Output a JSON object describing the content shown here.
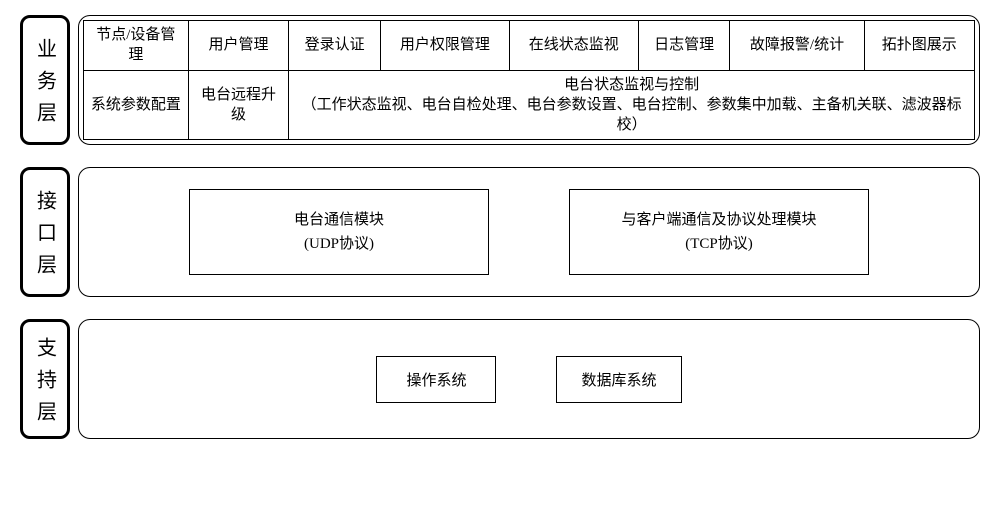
{
  "diagram": {
    "type": "layered-architecture",
    "colors": {
      "background": "#ffffff",
      "border": "#000000",
      "text": "#000000"
    },
    "layers": {
      "business": {
        "label": "业务层",
        "grid": {
          "columns": 8,
          "row1": [
            "节点/设备管理",
            "用户管理",
            "登录认证",
            "用户权限管理",
            "在线状态监视",
            "日志管理",
            "故障报警/统计",
            "拓扑图展示"
          ],
          "row2": {
            "cells": [
              "系统参数配置",
              "电台远程升级"
            ],
            "merged": {
              "title": "电台状态监视与控制",
              "detail": "（工作状态监视、电台自检处理、电台参数设置、电台控制、参数集中加载、主备机关联、滤波器标校）",
              "colspan": 6
            }
          }
        }
      },
      "interface": {
        "label": "接口层",
        "modules": [
          {
            "name": "电台通信模块",
            "protocol": "(UDP协议)"
          },
          {
            "name": "与客户端通信及协议处理模块",
            "protocol": "(TCP协议)"
          }
        ]
      },
      "support": {
        "label": "支持层",
        "modules": [
          "操作系统",
          "数据库系统"
        ]
      }
    }
  }
}
